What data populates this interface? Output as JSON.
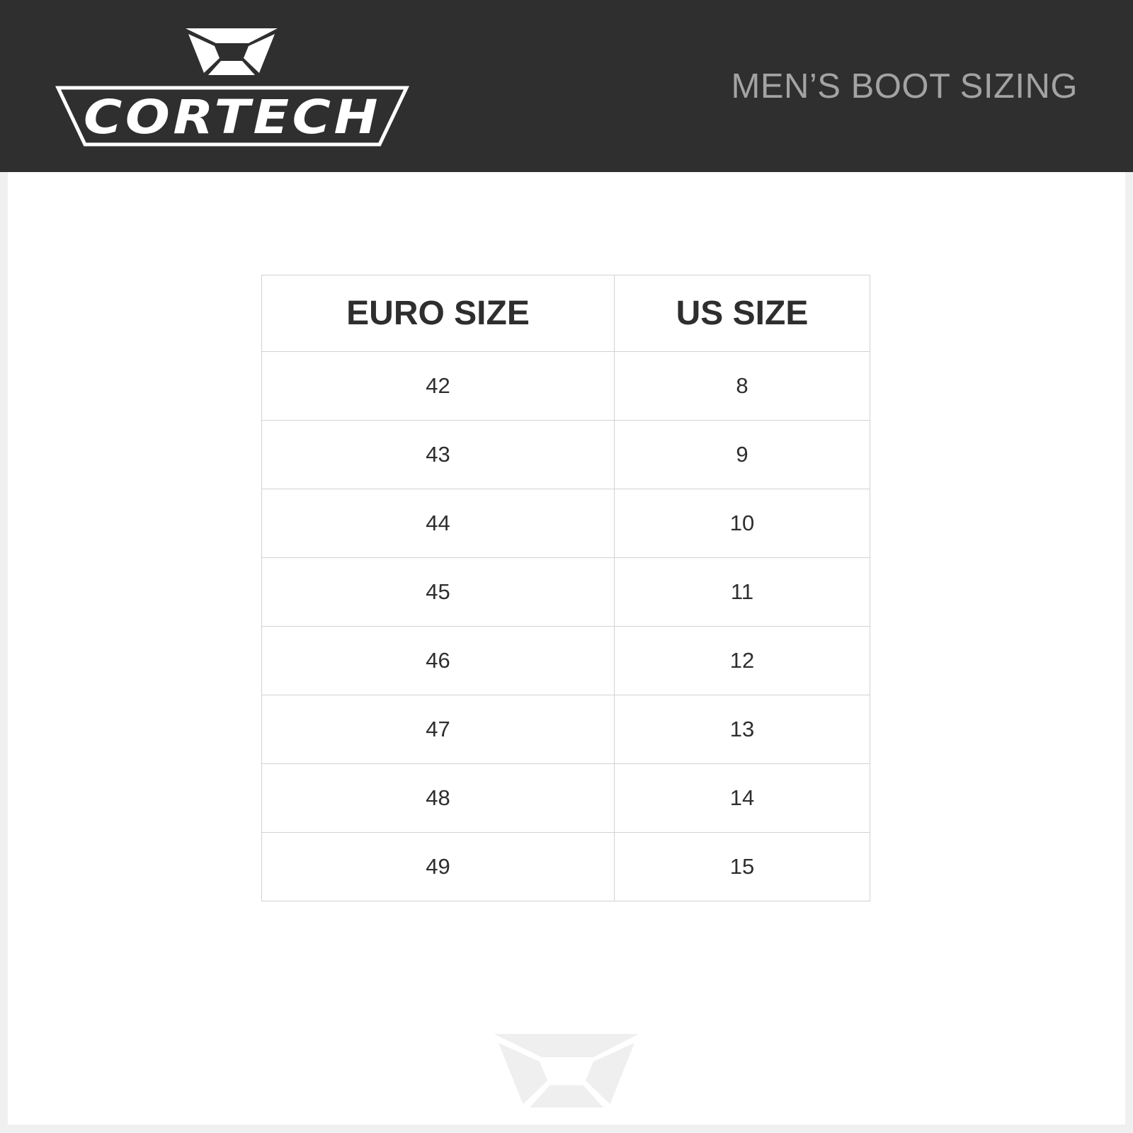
{
  "brand": {
    "logo_text": "CORTECH"
  },
  "header": {
    "title": "MEN’S BOOT SIZING"
  },
  "table": {
    "columns": [
      "EURO SIZE",
      "US SIZE"
    ],
    "rows": [
      [
        "42",
        "8"
      ],
      [
        "43",
        "9"
      ],
      [
        "44",
        "10"
      ],
      [
        "45",
        "11"
      ],
      [
        "46",
        "12"
      ],
      [
        "47",
        "13"
      ],
      [
        "48",
        "14"
      ],
      [
        "49",
        "15"
      ]
    ]
  },
  "colors": {
    "header_bg": "#2f2f2f",
    "title": "#a3a3a3",
    "text": "#2e2e2e",
    "border": "#d2d2d2",
    "watermark": "#efefef"
  }
}
